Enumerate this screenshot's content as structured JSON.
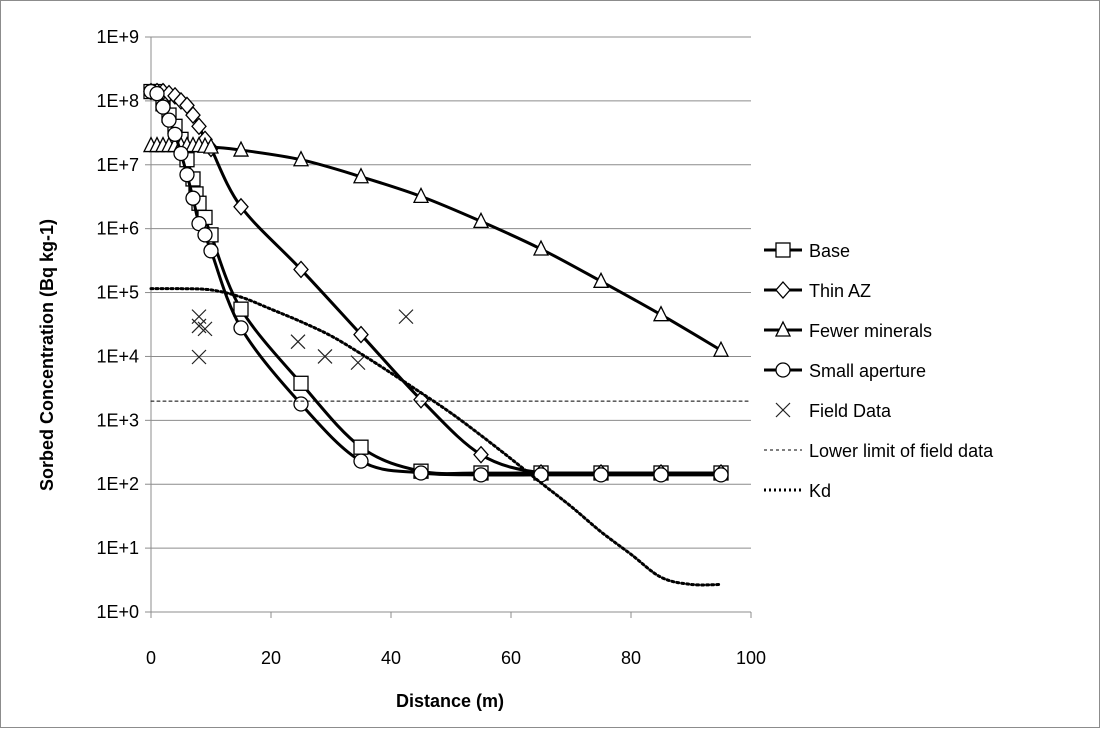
{
  "chart_data": {
    "type": "line",
    "title": "",
    "xlabel": "Distance (m)",
    "ylabel": "Sorbed Concentration (Bq kg-1)",
    "xlim": [
      0,
      100
    ],
    "ylim": [
      1,
      1000000000
    ],
    "yscale": "log",
    "grid": "horizontal major gridlines",
    "legend_position": "right",
    "x_ticks": [
      "0",
      "20",
      "40",
      "60",
      "80",
      "100"
    ],
    "y_ticks": [
      "1E+0",
      "1E+1",
      "1E+2",
      "1E+3",
      "1E+4",
      "1E+5",
      "1E+6",
      "1E+7",
      "1E+8",
      "1E+9"
    ],
    "series": [
      {
        "name": "Base",
        "style": "solid line with square markers",
        "color": "#000000",
        "x": [
          0,
          1,
          2,
          3,
          4,
          5,
          6,
          7,
          7.5,
          8,
          9,
          10,
          15,
          25,
          35,
          45,
          55,
          65,
          75,
          85,
          95
        ],
        "y": [
          140000000,
          140000000,
          90000000,
          60000000,
          40000000,
          25000000,
          12000000,
          6000000,
          3500000,
          2500000,
          1500000,
          800000,
          55000,
          3800,
          380,
          160,
          150,
          150,
          150,
          150,
          150
        ]
      },
      {
        "name": "Thin AZ",
        "style": "solid line with diamond markers",
        "color": "#000000",
        "x": [
          0,
          1,
          2,
          3,
          4,
          5,
          6,
          7,
          8,
          9,
          10,
          15,
          25,
          35,
          45,
          55,
          65,
          75,
          85,
          95
        ],
        "y": [
          140000000,
          140000000,
          140000000,
          130000000,
          120000000,
          100000000,
          85000000,
          60000000,
          40000000,
          25000000,
          18000000,
          2200000,
          230000,
          22000,
          2100,
          290,
          150,
          150,
          150,
          150
        ]
      },
      {
        "name": "Fewer minerals",
        "style": "solid line with triangle markers",
        "color": "#000000",
        "x": [
          0,
          1,
          2,
          3,
          4,
          5,
          6,
          7,
          8,
          9,
          10,
          15,
          25,
          35,
          45,
          55,
          65,
          75,
          85,
          95
        ],
        "y": [
          20000000,
          20000000,
          20000000,
          20000000,
          20000000,
          20000000,
          20000000,
          20000000,
          20000000,
          19500000,
          19000000,
          17000000,
          12000000,
          6500000,
          3200000,
          1300000,
          480000,
          150000,
          45000,
          12500
        ]
      },
      {
        "name": "Small aperture",
        "style": "solid line with circle markers",
        "color": "#000000",
        "x": [
          0,
          1,
          2,
          3,
          4,
          5,
          6,
          7,
          8,
          9,
          10,
          15,
          25,
          35,
          45,
          55,
          65,
          75,
          85,
          95
        ],
        "y": [
          140000000,
          130000000,
          80000000,
          50000000,
          30000000,
          15000000,
          7000000,
          3000000,
          1200000,
          800000,
          450000,
          28000,
          1800,
          230,
          150,
          140,
          140,
          140,
          140,
          140
        ]
      },
      {
        "name": "Field Data",
        "style": "markers only (x)",
        "color": "#000000",
        "x": [
          8,
          8,
          9,
          8,
          24.5,
          29,
          34.5,
          42.5
        ],
        "y": [
          42000,
          30000,
          27000,
          9800,
          17000,
          10000,
          8000,
          42000
        ]
      },
      {
        "name": "Lower limit of field data",
        "style": "thin dashed line",
        "color": "#000000",
        "x": [
          0,
          100
        ],
        "y": [
          2000,
          2000
        ]
      },
      {
        "name": "Kd",
        "style": "dotted line",
        "color": "#000000",
        "x": [
          0,
          5,
          10,
          15,
          20,
          25,
          30,
          35,
          40,
          45,
          50,
          55,
          60,
          65,
          70,
          75,
          80,
          85,
          90,
          95
        ],
        "y": [
          115000,
          115000,
          110000,
          85000,
          55000,
          35000,
          21000,
          11000,
          5500,
          2700,
          1300,
          580,
          250,
          105,
          45,
          18,
          8,
          3.5,
          2.7,
          2.7
        ]
      }
    ]
  }
}
